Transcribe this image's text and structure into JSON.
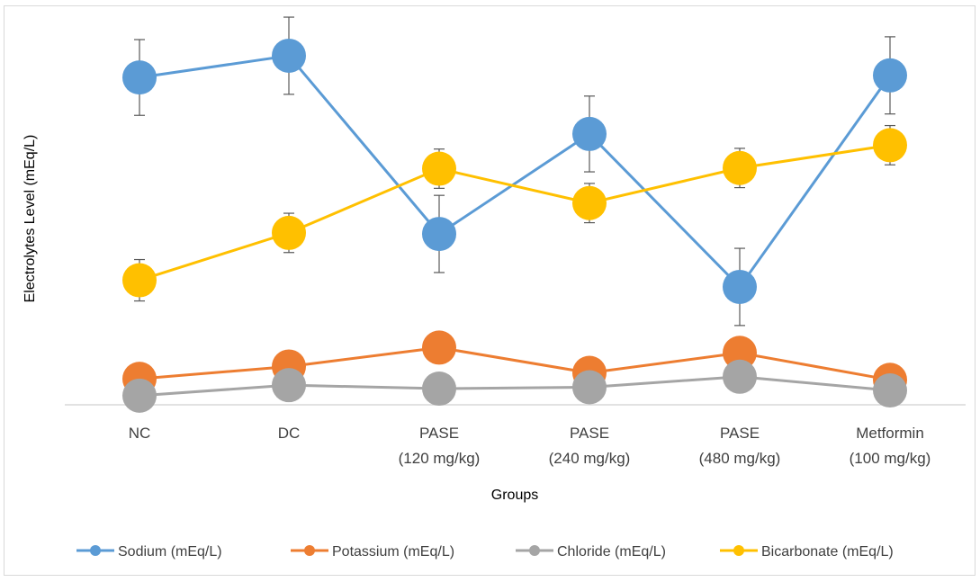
{
  "chart_data": {
    "type": "line",
    "title": "",
    "xlabel": "Groups",
    "ylabel": "Electrolytes Level (mEq/L)",
    "ylim": [
      0,
      1
    ],
    "y_ticks_shown": false,
    "grid": false,
    "legend_position": "bottom",
    "categories": [
      [
        "NC"
      ],
      [
        "DC"
      ],
      [
        "PASE",
        "(120 mg/kg)"
      ],
      [
        "PASE",
        "(240 mg/kg)"
      ],
      [
        "PASE",
        "(480 mg/kg)"
      ],
      [
        "Metformin",
        "(100 mg/kg)"
      ]
    ],
    "series": [
      {
        "name": "Sodium (mEq/L)",
        "color": "#5b9bd5",
        "values": [
          0.933,
          0.995,
          0.487,
          0.772,
          0.336,
          0.939
        ],
        "errors": [
          0.108,
          0.11,
          0.11,
          0.108,
          0.11,
          0.11
        ]
      },
      {
        "name": "Potassium (mEq/L)",
        "color": "#ed7d31",
        "values": [
          0.074,
          0.109,
          0.163,
          0.091,
          0.148,
          0.071
        ],
        "errors": [
          0,
          0,
          0,
          0,
          0,
          0
        ]
      },
      {
        "name": "Chloride (mEq/L)",
        "color": "#a5a5a5",
        "values": [
          0.026,
          0.056,
          0.046,
          0.05,
          0.08,
          0.041
        ],
        "errors": [
          0,
          0,
          0,
          0,
          0,
          0
        ]
      },
      {
        "name": "Bicarbonate (mEq/L)",
        "color": "#ffc000",
        "values": [
          0.355,
          0.49,
          0.673,
          0.575,
          0.675,
          0.74
        ],
        "errors": [
          0.059,
          0.056,
          0.056,
          0.056,
          0.056,
          0.056
        ]
      }
    ]
  }
}
